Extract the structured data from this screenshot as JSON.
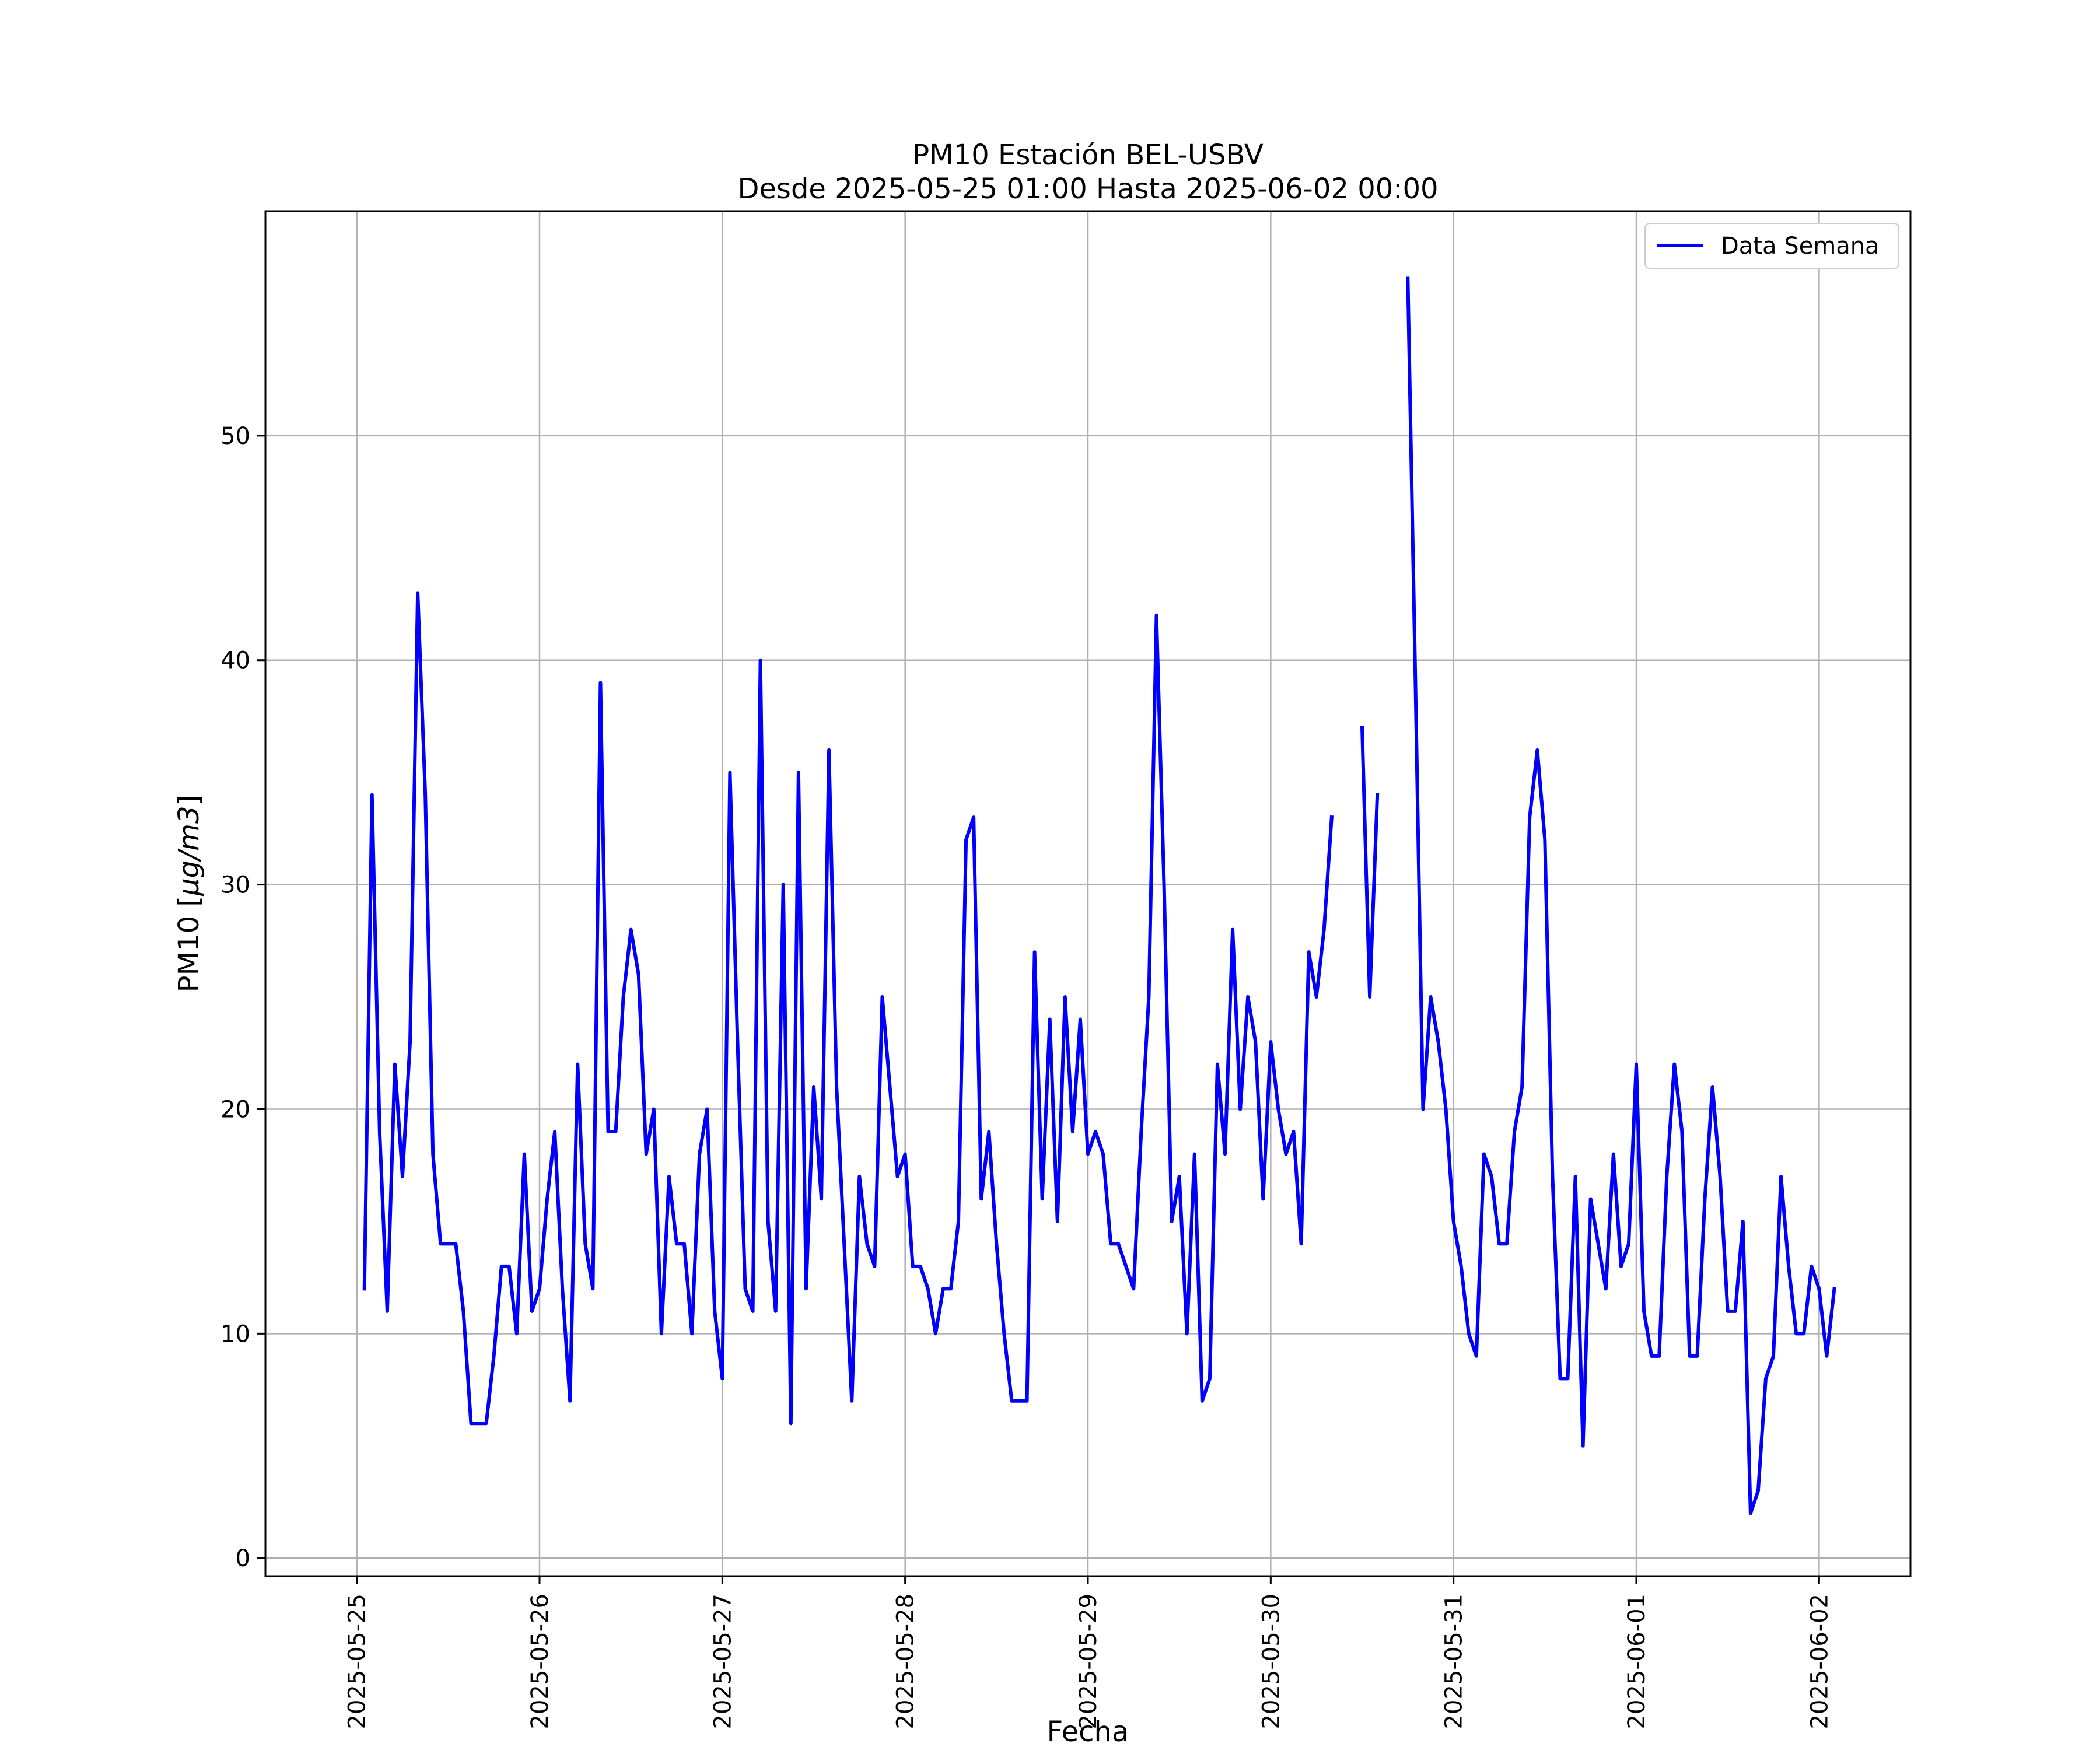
{
  "chart_data": {
    "type": "line",
    "title": "PM10 Estación BEL-USBV",
    "subtitle": "Desde 2025-05-25 01:00 Hasta 2025-06-02 00:00",
    "xlabel": "Fecha",
    "ylabel_prefix": "PM10 [",
    "ylabel_unit": "μg/m3",
    "ylabel_suffix": "]",
    "x_start": "2025-05-25 01:00",
    "x_interval_hours": 1,
    "xlim": [
      "2025-05-24 12:00",
      "2025-06-02 12:00"
    ],
    "ylim": [
      -0.8,
      60
    ],
    "x_ticks": [
      "2025-05-25",
      "2025-05-26",
      "2025-05-27",
      "2025-05-28",
      "2025-05-29",
      "2025-05-30",
      "2025-05-31",
      "2025-06-01",
      "2025-06-02"
    ],
    "y_ticks": [
      0,
      10,
      20,
      30,
      40,
      50
    ],
    "grid": true,
    "legend_position": "top-right",
    "series": [
      {
        "name": "Data Semana",
        "color": "#0000ff",
        "values": [
          12,
          34,
          19,
          11,
          22,
          17,
          23,
          43,
          34,
          18,
          14,
          14,
          14,
          11,
          6,
          6,
          6,
          9,
          13,
          13,
          10,
          18,
          11,
          12,
          16,
          19,
          12,
          7,
          22,
          14,
          12,
          39,
          19,
          19,
          25,
          28,
          26,
          18,
          20,
          10,
          17,
          14,
          14,
          10,
          18,
          20,
          11,
          8,
          35,
          23,
          12,
          11,
          40,
          15,
          11,
          30,
          6,
          35,
          12,
          21,
          16,
          36,
          21,
          14,
          7,
          17,
          14,
          13,
          25,
          21,
          17,
          18,
          13,
          13,
          12,
          10,
          12,
          12,
          15,
          32,
          33,
          16,
          19,
          14,
          10,
          7,
          7,
          7,
          27,
          16,
          24,
          15,
          25,
          19,
          24,
          18,
          19,
          18,
          14,
          14,
          13,
          12,
          19,
          25,
          42,
          30,
          15,
          17,
          10,
          18,
          7,
          8,
          22,
          18,
          28,
          20,
          25,
          23,
          16,
          23,
          20,
          18,
          19,
          14,
          27,
          25,
          28,
          33,
          null,
          null,
          null,
          37,
          25,
          34,
          null,
          null,
          null,
          57,
          39,
          20,
          25,
          23,
          20,
          15,
          13,
          10,
          9,
          18,
          17,
          14,
          14,
          19,
          21,
          33,
          36,
          32,
          17,
          8,
          8,
          17,
          5,
          16,
          14,
          12,
          18,
          13,
          14,
          22,
          11,
          9,
          9,
          17,
          22,
          19,
          9,
          9,
          16,
          21,
          17,
          11,
          11,
          15,
          2,
          3,
          8,
          9,
          17,
          13,
          10,
          10,
          13,
          12,
          9,
          12
        ]
      }
    ]
  }
}
